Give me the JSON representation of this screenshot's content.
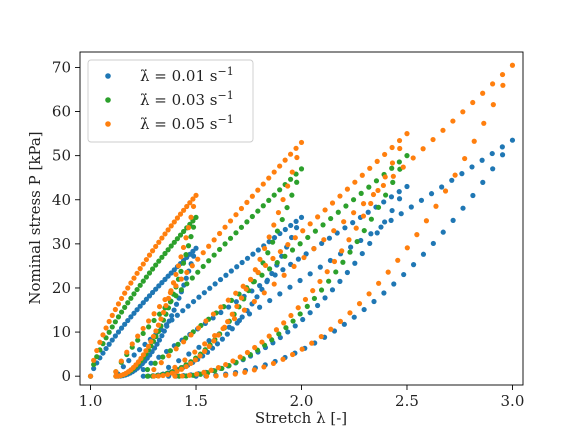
{
  "chart_data": {
    "type": "scatter",
    "xlabel": "Stretch λ [-]",
    "ylabel": "Nominal stress P [kPa]",
    "xlim": [
      0.95,
      3.05
    ],
    "ylim": [
      -2.0,
      73.5
    ],
    "x_ticks": [
      1.0,
      1.5,
      2.0,
      2.5,
      3.0
    ],
    "x_tick_labels": [
      "1.0",
      "1.5",
      "2.0",
      "2.5",
      "3.0"
    ],
    "y_ticks": [
      0,
      10,
      20,
      30,
      40,
      50,
      60,
      70
    ],
    "y_tick_labels": [
      "0",
      "10",
      "20",
      "30",
      "40",
      "50",
      "60",
      "70"
    ],
    "grid": false,
    "legend_position": "top-left",
    "series": [
      {
        "name": "λ̇ = 0.01 s⁻¹",
        "label_main": "λ̇ = 0.01 s",
        "label_sup": "−1",
        "color": "#1f77b4",
        "cycles": [
          {
            "x0": 1.0,
            "y0": 0.0,
            "xmax": 1.5,
            "pmax": 29.0,
            "xr": 1.13,
            "a": 1.25,
            "b": 2.0
          },
          {
            "x0": 1.13,
            "y0": 0.5,
            "xmax": 2.0,
            "pmax": 36.0,
            "xr": 1.25,
            "a": 1.15,
            "b": 2.1
          },
          {
            "x0": 1.25,
            "y0": 1.5,
            "xmax": 2.5,
            "pmax": 43.0,
            "xr": 1.37,
            "a": 1.05,
            "b": 2.1
          },
          {
            "x0": 1.37,
            "y0": 2.0,
            "xmax": 3.0,
            "pmax": 53.5,
            "xr": 1.5,
            "a": 1.0,
            "b": 2.0
          }
        ]
      },
      {
        "name": "λ̇ = 0.03 s⁻¹",
        "label_main": "λ̇ = 0.03 s",
        "label_sup": "−1",
        "color": "#2ca02c",
        "cycles": [
          {
            "x0": 1.0,
            "y0": 0.0,
            "xmax": 1.5,
            "pmax": 36.0,
            "xr": 1.12,
            "a": 1.35,
            "b": 2.0
          },
          {
            "x0": 1.12,
            "y0": 1.0,
            "xmax": 2.0,
            "pmax": 47.0,
            "xr": 1.27,
            "a": 1.15,
            "b": 2.1
          },
          {
            "x0": 1.27,
            "y0": 1.5,
            "xmax": 2.5,
            "pmax": 50.0,
            "xr": 1.42,
            "a": 1.0,
            "b": 2.0
          }
        ]
      },
      {
        "name": "λ̇ = 0.05 s⁻¹",
        "label_main": "λ̇ = 0.05 s",
        "label_sup": "−1",
        "color": "#ff7f0e",
        "cycles": [
          {
            "x0": 1.0,
            "y0": 0.0,
            "xmax": 1.5,
            "pmax": 41.0,
            "xr": 1.12,
            "a": 1.45,
            "b": 2.0
          },
          {
            "x0": 1.12,
            "y0": 1.0,
            "xmax": 2.0,
            "pmax": 53.0,
            "xr": 1.3,
            "a": 1.15,
            "b": 2.1
          },
          {
            "x0": 1.3,
            "y0": 1.5,
            "xmax": 2.5,
            "pmax": 55.0,
            "xr": 1.4,
            "a": 1.0,
            "b": 2.0
          },
          {
            "x0": 1.4,
            "y0": 2.0,
            "xmax": 3.0,
            "pmax": 70.5,
            "xr": 1.55,
            "a": 0.95,
            "b": 2.1
          }
        ]
      }
    ]
  }
}
